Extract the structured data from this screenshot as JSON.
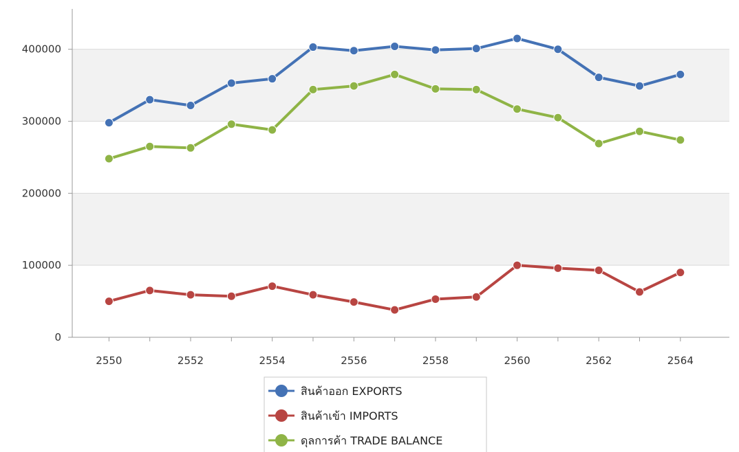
{
  "chart_data": {
    "type": "line",
    "title": "",
    "xlabel": "",
    "ylabel": "",
    "x": [
      2550,
      2551,
      2552,
      2553,
      2554,
      2555,
      2556,
      2557,
      2558,
      2559,
      2560,
      2561,
      2562,
      2563,
      2564
    ],
    "x_ticks": [
      "2550",
      "2552",
      "2554",
      "2556",
      "2558",
      "2560",
      "2562",
      "2564"
    ],
    "y_ticks": [
      "0",
      "100000",
      "200000",
      "300000",
      "400000"
    ],
    "xlim": [
      2549.1,
      2565.2
    ],
    "ylim": [
      0,
      456000
    ],
    "grid": "horizontal, alternating shaded bands",
    "legend_position": "bottom-center",
    "series": [
      {
        "name": "สินค้าออก EXPORTS",
        "color": "#4472b5",
        "values": [
          298000,
          330000,
          322000,
          353000,
          359000,
          403000,
          398000,
          404000,
          399000,
          401000,
          415000,
          400000,
          361000,
          349000,
          365000
        ]
      },
      {
        "name": "สินค้าเข้า IMPORTS",
        "color": "#b84542",
        "values": [
          50000,
          65000,
          59000,
          57000,
          71000,
          59000,
          49000,
          38000,
          53000,
          56000,
          100000,
          96000,
          93000,
          63000,
          90000
        ]
      },
      {
        "name": "ดุลการค้า TRADE BALANCE",
        "color": "#8fb446",
        "values": [
          248000,
          265000,
          263000,
          296000,
          288000,
          344000,
          349000,
          365000,
          345000,
          344000,
          317000,
          305000,
          269000,
          286000,
          274000
        ]
      }
    ]
  }
}
